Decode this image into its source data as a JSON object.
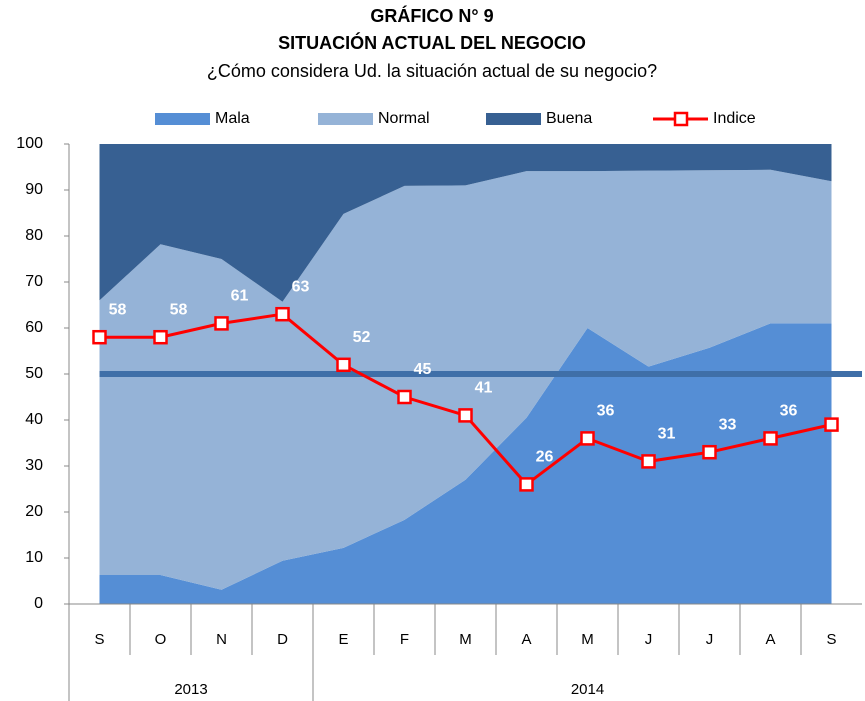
{
  "chart_data": {
    "type": "stacked_area_line",
    "title": [
      "GRÁFICO N° 9",
      "SITUACIÓN ACTUAL DEL NEGOCIO"
    ],
    "subtitle": "¿Cómo considera Ud. la situación actual de su negocio?",
    "categories": [
      "S",
      "O",
      "N",
      "D",
      "E",
      "F",
      "M",
      "A",
      "M",
      "J",
      "J",
      "A",
      "S"
    ],
    "x_groups": [
      {
        "label": "2013",
        "start": 0,
        "end": 3
      },
      {
        "label": "2014",
        "start": 4,
        "end": 12
      }
    ],
    "series": [
      {
        "name": "Mala",
        "color": "#558ed5",
        "kind": "area",
        "values": [
          6.3,
          6.3,
          3.1,
          9.4,
          12.2,
          18.3,
          27,
          40.5,
          60,
          51.6,
          55.7,
          61,
          61
        ]
      },
      {
        "name": "Normal",
        "color": "#95b3d7",
        "kind": "area",
        "values": [
          59.7,
          71.9,
          71.9,
          56.3,
          72.6,
          72.6,
          64,
          53.6,
          34.1,
          42.6,
          38.6,
          33.4,
          30.9
        ]
      },
      {
        "name": "Buena",
        "color": "#376092",
        "kind": "area",
        "values": [
          34,
          21.8,
          25,
          34.3,
          15.2,
          9.1,
          9,
          5.9,
          5.9,
          5.8,
          5.7,
          5.6,
          8.1
        ]
      },
      {
        "name": "Indice",
        "color": "#ff0000",
        "kind": "line",
        "values": [
          58,
          58,
          61,
          63,
          52,
          45,
          41,
          26,
          36,
          31,
          33,
          36,
          39
        ]
      }
    ],
    "reference_line": {
      "value": 50,
      "color": "#3f6fa8"
    },
    "ylim": [
      0,
      100
    ],
    "yticks": [
      0,
      10,
      20,
      30,
      40,
      50,
      60,
      70,
      80,
      90,
      100
    ],
    "legend": "top"
  }
}
